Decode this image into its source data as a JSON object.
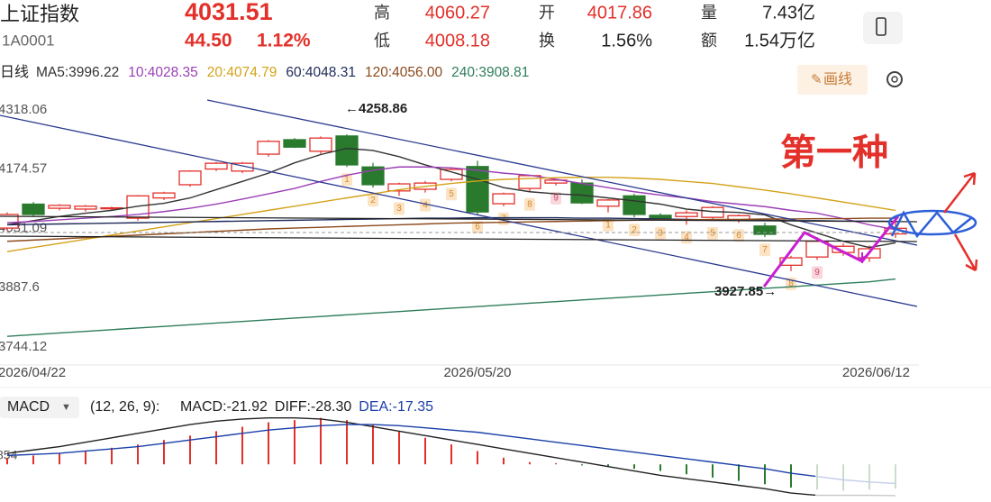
{
  "header": {
    "name": "上证指数",
    "code": "1A0001",
    "price": "4031.51",
    "change": "44.50",
    "change_pct": "1.12%",
    "stats": [
      {
        "label": "高",
        "value": "4060.27",
        "color": "#e3302a"
      },
      {
        "label": "开",
        "value": "4017.86",
        "color": "#e3302a"
      },
      {
        "label": "量",
        "value": "7.43亿",
        "color": "#222222"
      },
      {
        "label": "低",
        "value": "4008.18",
        "color": "#e3302a"
      },
      {
        "label": "换",
        "value": "1.56%",
        "color": "#222222"
      },
      {
        "label": "额",
        "value": "1.54万亿",
        "color": "#222222"
      }
    ]
  },
  "toolbar": {
    "period": "日线",
    "draw_button": "画线"
  },
  "chart_data": [
    {
      "type": "candlestick",
      "categories": [
        "2026/04/22",
        null,
        null,
        null,
        null,
        null,
        null,
        null,
        null,
        null,
        null,
        null,
        null,
        null,
        null,
        null,
        null,
        null,
        "2026/05/20",
        null,
        null,
        null,
        null,
        null,
        null,
        null,
        null,
        null,
        null,
        null,
        null,
        null,
        null,
        null,
        "2026/06/12"
      ],
      "open": [
        4032,
        4090,
        4080,
        4078,
        4079,
        4056,
        4105,
        4137,
        4175,
        4170,
        4211,
        4246,
        4218,
        4255,
        4180,
        4122,
        4126,
        4150,
        4181,
        4091,
        4128,
        4141,
        4141,
        4085,
        4110,
        4063,
        4060,
        4058,
        4052,
        4037,
        3942,
        3962,
        3973,
        3960,
        4017.86
      ],
      "high": [
        4070,
        4095,
        4090,
        4088,
        4084,
        4112,
        4120,
        4172,
        4192,
        4192,
        4245,
        4250,
        4254,
        4258.86,
        4190,
        4142,
        4146,
        4178,
        4195,
        4118,
        4160,
        4150,
        4150,
        4102,
        4115,
        4068,
        4075,
        4085,
        4065,
        4045,
        3965,
        4010,
        3995,
        3990,
        4060.27
      ],
      "low": [
        4025,
        4060,
        4075,
        4072,
        4074,
        4050,
        4100,
        4132,
        4170,
        4165,
        4205,
        4226,
        4212,
        4180,
        4130,
        4110,
        4118,
        4145,
        4065,
        4085,
        4120,
        4135,
        4090,
        4070,
        4058,
        4050,
        4040,
        4050,
        4045,
        4010,
        3927.85,
        3955,
        3965,
        3950,
        4008.18
      ],
      "close": [
        4065,
        4065,
        4087,
        4085,
        4081,
        4110,
        4117,
        4170,
        4189,
        4189,
        4242,
        4228,
        4250,
        4185,
        4137,
        4139,
        4141,
        4174,
        4071,
        4115,
        4159,
        4148,
        4093,
        4100,
        4065,
        4054,
        4069,
        4082,
        4062,
        4017,
        3960,
        4000,
        3988,
        3982,
        4031.51
      ],
      "up_color": "#e3302a",
      "down_color": "#2a7a2e",
      "series": [
        {
          "name": "MA5:3996.22",
          "color": "#333333",
          "values": [
            4040,
            4050,
            4060,
            4068,
            4075,
            4085,
            4092,
            4105,
            4125,
            4145,
            4165,
            4190,
            4210,
            4225,
            4220,
            4205,
            4185,
            4168,
            4150,
            4130,
            4120,
            4115,
            4112,
            4105,
            4098,
            4090,
            4078,
            4072,
            4070,
            4064,
            4040,
            4020,
            4000,
            3985,
            3996.22
          ]
        },
        {
          "name": "10:4028.35",
          "color": "#9b3fb5",
          "values": [
            4045,
            4048,
            4052,
            4056,
            4060,
            4065,
            4072,
            4080,
            4090,
            4102,
            4115,
            4128,
            4145,
            4160,
            4172,
            4180,
            4180,
            4178,
            4172,
            4165,
            4160,
            4150,
            4140,
            4130,
            4120,
            4112,
            4105,
            4096,
            4090,
            4084,
            4075,
            4068,
            4055,
            4040,
            4028.35
          ]
        },
        {
          "name": "20:4074.79",
          "color": "#d4a21a",
          "values": [
            3975,
            3985,
            3995,
            4005,
            4015,
            4025,
            4035,
            4045,
            4055,
            4065,
            4075,
            4085,
            4095,
            4105,
            4115,
            4125,
            4133,
            4140,
            4146,
            4150,
            4152,
            4154,
            4155,
            4155,
            4153,
            4150,
            4145,
            4140,
            4132,
            4124,
            4115,
            4105,
            4095,
            4085,
            4074.79
          ]
        },
        {
          "name": "60:4048.31",
          "color": "#1e2a5a",
          "values": [
            4040,
            4041,
            4042,
            4043,
            4044,
            4045,
            4046,
            4047,
            4048,
            4049,
            4050,
            4051,
            4052,
            4053,
            4054,
            4055,
            4056,
            4056,
            4057,
            4057,
            4057,
            4057,
            4056,
            4056,
            4055,
            4054,
            4053,
            4052,
            4052,
            4051,
            4050,
            4050,
            4049,
            4049,
            4048.31
          ]
        },
        {
          "name": "120:4056.00",
          "color": "#8b4a1c",
          "values": [
            4000,
            4003,
            4006,
            4009,
            4012,
            4015,
            4018,
            4021,
            4024,
            4027,
            4030,
            4032,
            4034,
            4036,
            4038,
            4040,
            4042,
            4044,
            4045,
            4046,
            4047,
            4048,
            4049,
            4050,
            4051,
            4052,
            4052,
            4053,
            4053,
            4054,
            4054,
            4055,
            4055,
            4056,
            4056
          ]
        },
        {
          "name": "240:3908.81",
          "color": "#2e7d5b",
          "values": [
            3770,
            3774,
            3778,
            3782,
            3786,
            3790,
            3794,
            3798,
            3802,
            3806,
            3810,
            3814,
            3818,
            3822,
            3826,
            3830,
            3834,
            3838,
            3842,
            3846,
            3850,
            3854,
            3858,
            3862,
            3866,
            3870,
            3874,
            3878,
            3882,
            3886,
            3890,
            3894,
            3898,
            3902,
            3908.81
          ]
        }
      ],
      "counts": [
        null,
        null,
        null,
        null,
        null,
        null,
        null,
        null,
        null,
        null,
        null,
        null,
        null,
        1,
        2,
        3,
        4,
        5,
        6,
        7,
        8,
        9,
        null,
        1,
        2,
        3,
        4,
        5,
        6,
        7,
        8,
        9,
        null,
        null,
        null
      ],
      "ylim": [
        3700.5,
        4344.2
      ],
      "yticks": [
        4318.06,
        4174.57,
        4031.09,
        3887.6,
        3744.12
      ],
      "annotations": [
        "←4258.86",
        "3927.85→",
        "第一种"
      ]
    },
    {
      "type": "macd",
      "indicator": "MACD",
      "params": "(12, 26, 9):",
      "axis_note": "854",
      "up_color": "#e3302a",
      "down_color": "#2a7a2e",
      "series": [
        {
          "name": "MACD:-21.92",
          "color": "#222222",
          "kind": "bar",
          "values": [
            6,
            8,
            10,
            12,
            15,
            18,
            22,
            26,
            30,
            34,
            38,
            40,
            42,
            40,
            36,
            30,
            24,
            18,
            12,
            6,
            2,
            1,
            -1,
            -2,
            -4,
            -6,
            -9,
            -12,
            -15,
            -18,
            -21,
            -23,
            -24,
            -23,
            -21.92
          ]
        },
        {
          "name": "DIFF:-28.30",
          "color": "#222222",
          "kind": "line",
          "values": [
            10,
            13,
            16,
            20,
            24,
            28,
            32,
            36,
            39,
            41,
            42,
            42,
            41,
            38,
            34,
            30,
            26,
            22,
            18,
            14,
            10,
            6,
            2,
            -2,
            -6,
            -10,
            -13,
            -16,
            -19,
            -22,
            -26,
            -28,
            -28,
            -28,
            -28.3
          ]
        },
        {
          "name": "DEA:-17.35",
          "color": "#1a3fa8",
          "kind": "line",
          "values": [
            8,
            9,
            10,
            12,
            14,
            16,
            19,
            22,
            25,
            28,
            31,
            33,
            35,
            36,
            36,
            35,
            33,
            31,
            29,
            26,
            23,
            20,
            17,
            14,
            11,
            8,
            5,
            2,
            -1,
            -4,
            -8,
            -11,
            -14,
            -16,
            -17.35
          ]
        }
      ],
      "ylim": [
        -30,
        45
      ]
    }
  ]
}
